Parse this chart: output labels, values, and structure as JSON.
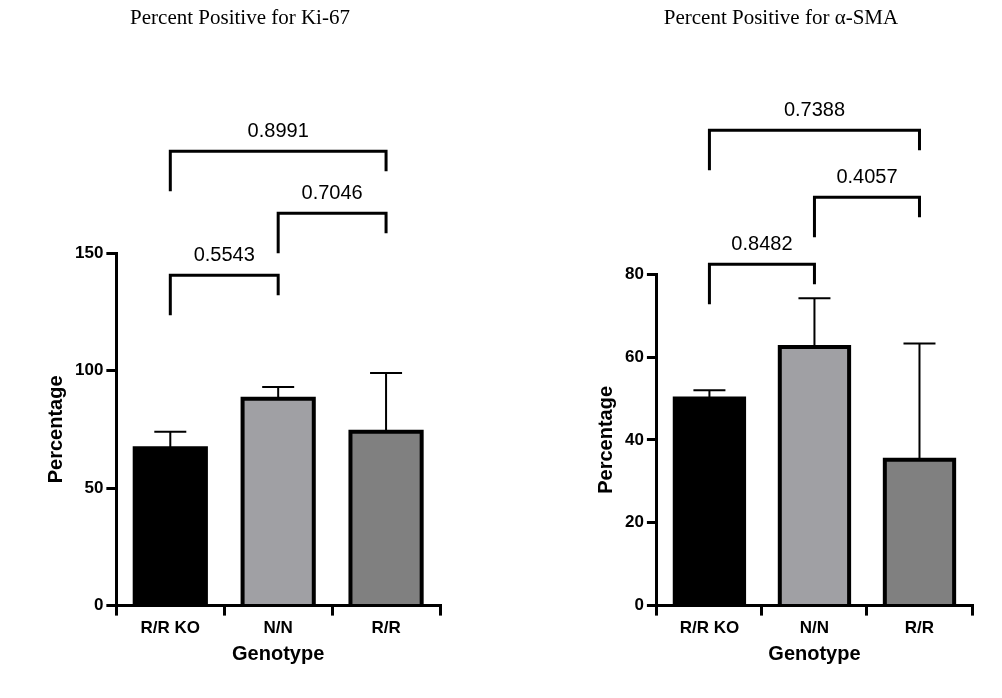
{
  "chart_data": [
    {
      "type": "bar",
      "title": "Percent Positive for Ki-67",
      "xlabel": "Genotype",
      "ylabel": "Percentage",
      "categories": [
        "R/R KO",
        "N/N",
        "R/R"
      ],
      "values": [
        67,
        88,
        74
      ],
      "colors": [
        "#000000",
        "#a0a0a4",
        "#808080"
      ],
      "errors": [
        [
          67,
          74
        ],
        [
          88,
          93
        ],
        [
          74,
          99
        ]
      ],
      "ylim": [
        0,
        150
      ],
      "yticks": [
        0,
        50,
        100,
        150
      ],
      "grid": false,
      "legend": false,
      "annotations": [
        "0.5543",
        "0.7046",
        "0.8991"
      ]
    },
    {
      "type": "bar",
      "title": "Percent Positive for α-SMA",
      "xlabel": "Genotype",
      "ylabel": "Percentage",
      "categories": [
        "R/R KO",
        "N/N",
        "R/R"
      ],
      "values": [
        50,
        62.4,
        35.2
      ],
      "colors": [
        "#000000",
        "#a0a0a4",
        "#808080"
      ],
      "errors": [
        [
          50,
          52
        ],
        [
          62.4,
          74.2
        ],
        [
          35.2,
          63.3
        ]
      ],
      "ylim": [
        0,
        80
      ],
      "yticks": [
        0,
        20,
        40,
        60,
        80
      ],
      "grid": false,
      "legend": false,
      "annotations": [
        "0.8482",
        "0.4057",
        "0.7388"
      ]
    }
  ]
}
